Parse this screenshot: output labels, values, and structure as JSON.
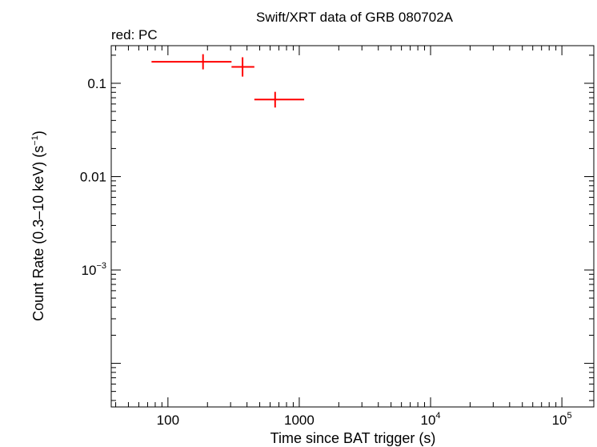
{
  "chart_data": {
    "type": "scatter",
    "title": "Swift/XRT data of GRB 080702A",
    "subtitle": "red: PC",
    "xlabel": "Time since BAT trigger (s)",
    "ylabel_main": "Count Rate (0.3–10 keV) (s",
    "ylabel_sup": "−1",
    "ylabel_end": ")",
    "x_scale": "log",
    "y_scale": "log",
    "xlim": [
      37,
      175000
    ],
    "ylim": [
      3.41e-05,
      0.253
    ],
    "x_ticks": [
      {
        "value": 100,
        "label": "100",
        "sup": ""
      },
      {
        "value": 1000,
        "label": "1000",
        "sup": ""
      },
      {
        "value": 10000,
        "label": "10",
        "sup": "4"
      },
      {
        "value": 100000,
        "label": "10",
        "sup": "5"
      }
    ],
    "y_ticks": [
      {
        "value": 0.1,
        "label": "0.1",
        "sup": ""
      },
      {
        "value": 0.01,
        "label": "0.01",
        "sup": ""
      },
      {
        "value": 0.001,
        "label": "10",
        "sup": "−3"
      }
    ],
    "series_color": "#ff0000",
    "points": [
      {
        "x": 185,
        "x_lo": 75,
        "x_hi": 305,
        "y": 0.17,
        "y_lo": 0.141,
        "y_hi": 0.205
      },
      {
        "x": 370,
        "x_lo": 305,
        "x_hi": 455,
        "y": 0.15,
        "y_lo": 0.118,
        "y_hi": 0.19
      },
      {
        "x": 655,
        "x_lo": 455,
        "x_hi": 1090,
        "y": 0.067,
        "y_lo": 0.055,
        "y_hi": 0.081
      }
    ]
  }
}
